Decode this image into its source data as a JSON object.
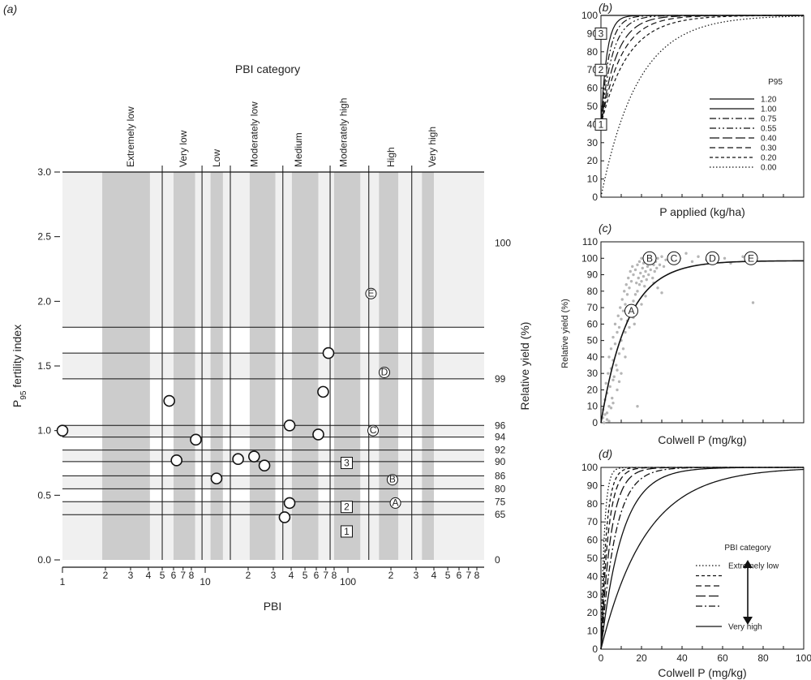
{
  "figure": {
    "panel_labels": [
      "(a)",
      "(b)",
      "(c)",
      "(d)"
    ],
    "colors": {
      "band_light": "#f0f0f0",
      "band_dark": "#cccccc",
      "line": "#111111",
      "scatter_grey": "#b5b5b5"
    }
  },
  "chart_data": [
    {
      "panel": "a",
      "type": "scatter",
      "title": "PBI category",
      "xlabel": "PBI",
      "ylabel": "P95 fertility index",
      "ylabel_main": "P",
      "ylabel_sub": "95",
      "ylabel_rest": " fertility index",
      "y2label": "Relative yield (%)",
      "xscale": "log",
      "xlim": [
        1,
        900
      ],
      "ylim": [
        0,
        3
      ],
      "y_ticks": [
        "0.0",
        "0.5",
        "1.0",
        "1.5",
        "2.0",
        "2.5",
        "3.0"
      ],
      "x_ticks": [
        {
          "v": 1,
          "label": "1",
          "major": true
        },
        {
          "v": 2,
          "label": "2"
        },
        {
          "v": 3,
          "label": "3"
        },
        {
          "v": 4,
          "label": "4"
        },
        {
          "v": 5,
          "label": "5"
        },
        {
          "v": 6,
          "label": "6"
        },
        {
          "v": 7,
          "label": "7"
        },
        {
          "v": 8,
          "label": "8"
        },
        {
          "v": 10,
          "label": "10",
          "major": true
        },
        {
          "v": 20,
          "label": "2"
        },
        {
          "v": 30,
          "label": "3"
        },
        {
          "v": 40,
          "label": "4"
        },
        {
          "v": 50,
          "label": "5"
        },
        {
          "v": 60,
          "label": "6"
        },
        {
          "v": 70,
          "label": "7"
        },
        {
          "v": 80,
          "label": "8"
        },
        {
          "v": 100,
          "label": "100",
          "major": true
        },
        {
          "v": 200,
          "label": "2"
        },
        {
          "v": 300,
          "label": "3"
        },
        {
          "v": 400,
          "label": "4"
        },
        {
          "v": 500,
          "label": "5"
        },
        {
          "v": 600,
          "label": "6"
        },
        {
          "v": 700,
          "label": "7"
        },
        {
          "v": 800,
          "label": "8"
        }
      ],
      "categories": [
        {
          "name": "Extremely low",
          "label_x": 3,
          "band": [
            1.9,
            4.1
          ]
        },
        {
          "name": "Very low",
          "label_x": 7,
          "band": [
            6,
            8.5
          ]
        },
        {
          "name": "Low",
          "label_x": 12,
          "band": [
            10.9,
            13.3
          ]
        },
        {
          "name": "Moderately low",
          "label_x": 22,
          "band": [
            20.5,
            31
          ]
        },
        {
          "name": "Medium",
          "label_x": 45,
          "band": [
            40.5,
            62
          ]
        },
        {
          "name": "Moderately high",
          "label_x": 93,
          "band": [
            80,
            122
          ]
        },
        {
          "name": "High",
          "label_x": 200,
          "band": [
            165,
            225
          ]
        },
        {
          "name": "Very high",
          "label_x": 390,
          "band": [
            330,
            400
          ]
        }
      ],
      "category_boundaries": [
        5,
        9.5,
        15,
        35,
        75,
        140,
        280
      ],
      "rel_yield_levels": [
        {
          "y": 0.35,
          "label": "65"
        },
        {
          "y": 0.45,
          "label": "75"
        },
        {
          "y": 0.55,
          "label": "80"
        },
        {
          "y": 0.65,
          "label": "86"
        },
        {
          "y": 0.76,
          "label": "90"
        },
        {
          "y": 0.85,
          "label": "92"
        },
        {
          "y": 0.95,
          "label": "94"
        },
        {
          "y": 1.04,
          "label": "96"
        },
        {
          "y": 1.4,
          "label": "99"
        },
        {
          "y": 1.6,
          "label": ""
        },
        {
          "y": 1.8,
          "label": ""
        }
      ],
      "right_axis_labels": [
        {
          "y": 0.0,
          "label": "0"
        },
        {
          "y": 2.45,
          "label": "100"
        }
      ],
      "points": [
        {
          "x": 1.0,
          "y": 1.0
        },
        {
          "x": 5.6,
          "y": 1.23
        },
        {
          "x": 6.3,
          "y": 0.77
        },
        {
          "x": 8.6,
          "y": 0.93
        },
        {
          "x": 12,
          "y": 0.63
        },
        {
          "x": 17,
          "y": 0.78
        },
        {
          "x": 22,
          "y": 0.8
        },
        {
          "x": 26,
          "y": 0.73
        },
        {
          "x": 36,
          "y": 0.33
        },
        {
          "x": 39,
          "y": 0.44
        },
        {
          "x": 39,
          "y": 1.04
        },
        {
          "x": 62,
          "y": 0.97
        },
        {
          "x": 67,
          "y": 1.3
        },
        {
          "x": 73,
          "y": 1.6
        }
      ],
      "lettered_points": [
        {
          "x": 215,
          "y": 0.44,
          "label": "A"
        },
        {
          "x": 205,
          "y": 0.62,
          "label": "B"
        },
        {
          "x": 150,
          "y": 1.0,
          "label": "C"
        },
        {
          "x": 180,
          "y": 1.45,
          "label": "D"
        },
        {
          "x": 145,
          "y": 2.06,
          "label": "E"
        }
      ],
      "boxed_points": [
        {
          "x": 98,
          "y": 0.22,
          "label": "1"
        },
        {
          "x": 98,
          "y": 0.41,
          "label": "2"
        },
        {
          "x": 98,
          "y": 0.75,
          "label": "3"
        }
      ]
    },
    {
      "panel": "b",
      "type": "line",
      "xlabel": "P applied (kg/ha)",
      "ylabel": "",
      "xlim": [
        0,
        100
      ],
      "ylim": [
        0,
        100
      ],
      "y_ticks": [
        "0",
        "10",
        "20",
        "30",
        "40",
        "50",
        "60",
        "70",
        "80",
        "90",
        "100"
      ],
      "legend_title": "P95",
      "series": [
        {
          "name": "1.20",
          "style": "solid",
          "intercept": 100,
          "rate": 0.5
        },
        {
          "name": "1.00",
          "style": "solid",
          "intercept": 40,
          "rate": 0.35
        },
        {
          "name": "0.75",
          "style": "dashdot",
          "intercept": 40,
          "rate": 0.25
        },
        {
          "name": "0.55",
          "style": "dashdotdot",
          "intercept": 40,
          "rate": 0.18
        },
        {
          "name": "0.40",
          "style": "longdash",
          "intercept": 40,
          "rate": 0.13
        },
        {
          "name": "0.30",
          "style": "dash",
          "intercept": 40,
          "rate": 0.1
        },
        {
          "name": "0.20",
          "style": "shortdash",
          "intercept": 40,
          "rate": 0.075
        },
        {
          "name": "0.00",
          "style": "dot",
          "intercept": 0,
          "rate": 0.055
        }
      ],
      "boxed_points": [
        {
          "x": 0,
          "y": 40,
          "label": "1"
        },
        {
          "x": 0,
          "y": 70,
          "label": "2"
        },
        {
          "x": 0,
          "y": 90,
          "label": "3"
        }
      ]
    },
    {
      "panel": "c",
      "type": "scatter",
      "xlabel": "Colwell P (mg/kg)",
      "ylabel": "Relative yield (%)",
      "xlim": [
        0,
        100
      ],
      "ylim": [
        0,
        110
      ],
      "y_ticks": [
        "0",
        "10",
        "20",
        "30",
        "40",
        "50",
        "60",
        "70",
        "80",
        "90",
        "100",
        "110"
      ],
      "curve": {
        "asymptote": 98.5,
        "rate": 0.075
      },
      "lettered_points": [
        {
          "x": 15,
          "y": 68,
          "label": "A"
        },
        {
          "x": 24,
          "y": 100,
          "label": "B"
        },
        {
          "x": 36,
          "y": 100,
          "label": "C"
        },
        {
          "x": 55,
          "y": 100,
          "label": "D"
        },
        {
          "x": 74,
          "y": 100,
          "label": "E"
        }
      ],
      "observations": [
        [
          1,
          3
        ],
        [
          1,
          8
        ],
        [
          1.5,
          0
        ],
        [
          2,
          5
        ],
        [
          2,
          14
        ],
        [
          2.5,
          24
        ],
        [
          3,
          2
        ],
        [
          3,
          18
        ],
        [
          3.5,
          30
        ],
        [
          4,
          10
        ],
        [
          4,
          40
        ],
        [
          4.5,
          22
        ],
        [
          5,
          33
        ],
        [
          5,
          45
        ],
        [
          5.5,
          15
        ],
        [
          6,
          38
        ],
        [
          6,
          52
        ],
        [
          6.5,
          28
        ],
        [
          7,
          48
        ],
        [
          7,
          60
        ],
        [
          7.5,
          35
        ],
        [
          8,
          55
        ],
        [
          8.5,
          65
        ],
        [
          9,
          42
        ],
        [
          9,
          58
        ],
        [
          9.5,
          70
        ],
        [
          10,
          50
        ],
        [
          10,
          63
        ],
        [
          10.5,
          75
        ],
        [
          11,
          45
        ],
        [
          11,
          68
        ],
        [
          11.5,
          80
        ],
        [
          12,
          55
        ],
        [
          12,
          72
        ],
        [
          12.5,
          84
        ],
        [
          13,
          62
        ],
        [
          13,
          78
        ],
        [
          13.5,
          88
        ],
        [
          14,
          66
        ],
        [
          14,
          82
        ],
        [
          14.5,
          92
        ],
        [
          15,
          70
        ],
        [
          15,
          86
        ],
        [
          15.5,
          95
        ],
        [
          16,
          74
        ],
        [
          16,
          90
        ],
        [
          16.5,
          60
        ],
        [
          17,
          78
        ],
        [
          17,
          93
        ],
        [
          17.5,
          85
        ],
        [
          18,
          80
        ],
        [
          18,
          96
        ],
        [
          18.5,
          88
        ],
        [
          19,
          84
        ],
        [
          19,
          98
        ],
        [
          19.5,
          91
        ],
        [
          20,
          86
        ],
        [
          20,
          100
        ],
        [
          20.5,
          94
        ],
        [
          21,
          89
        ],
        [
          21,
          97
        ],
        [
          21.5,
          83
        ],
        [
          22,
          92
        ],
        [
          22,
          99
        ],
        [
          22.5,
          87
        ],
        [
          23,
          95
        ],
        [
          23.5,
          90
        ],
        [
          24,
          97
        ],
        [
          24.5,
          93
        ],
        [
          25,
          99
        ],
        [
          25.5,
          88
        ],
        [
          26,
          96
        ],
        [
          26.5,
          92
        ],
        [
          27,
          98
        ],
        [
          27.5,
          94
        ],
        [
          28,
          100
        ],
        [
          29,
          96
        ],
        [
          30,
          101
        ],
        [
          31,
          95
        ],
        [
          32,
          99
        ],
        [
          34,
          102
        ],
        [
          36,
          97
        ],
        [
          39,
          100
        ],
        [
          42,
          103
        ],
        [
          45,
          98
        ],
        [
          48,
          101
        ],
        [
          52,
          99
        ],
        [
          57,
          102
        ],
        [
          61,
          100
        ],
        [
          64,
          97
        ],
        [
          70,
          101
        ],
        [
          75,
          73
        ],
        [
          18,
          10
        ],
        [
          4,
          1
        ],
        [
          3,
          6
        ],
        [
          5,
          9
        ],
        [
          6,
          12
        ],
        [
          8,
          20
        ],
        [
          10,
          30
        ],
        [
          12,
          40
        ],
        [
          26,
          85
        ],
        [
          28,
          82
        ],
        [
          30,
          79
        ],
        [
          14,
          58
        ],
        [
          16,
          64
        ],
        [
          20,
          72
        ],
        [
          22,
          77
        ],
        [
          6,
          26
        ],
        [
          8,
          32
        ],
        [
          9,
          25
        ]
      ]
    },
    {
      "panel": "d",
      "type": "line",
      "xlabel": "Colwell P (mg/kg)",
      "ylabel": "",
      "xlim": [
        0,
        100
      ],
      "ylim": [
        0,
        100
      ],
      "y_ticks": [
        "0",
        "10",
        "20",
        "30",
        "40",
        "50",
        "60",
        "70",
        "80",
        "90",
        "100"
      ],
      "x_ticks": [
        "0",
        "20",
        "40",
        "60",
        "80",
        "100"
      ],
      "legend_title": "PBI category",
      "series": [
        {
          "name": "Extremely low",
          "style": "dot",
          "rate": 0.6
        },
        {
          "name": "",
          "style": "shortdash",
          "rate": 0.38
        },
        {
          "name": "",
          "style": "dash",
          "rate": 0.28
        },
        {
          "name": "",
          "style": "longdash",
          "rate": 0.2
        },
        {
          "name": "",
          "style": "dashdot",
          "rate": 0.14
        },
        {
          "name": "",
          "style": "solid",
          "rate": 0.095
        },
        {
          "name": "Very high",
          "style": "solid",
          "rate": 0.045
        }
      ]
    }
  ]
}
